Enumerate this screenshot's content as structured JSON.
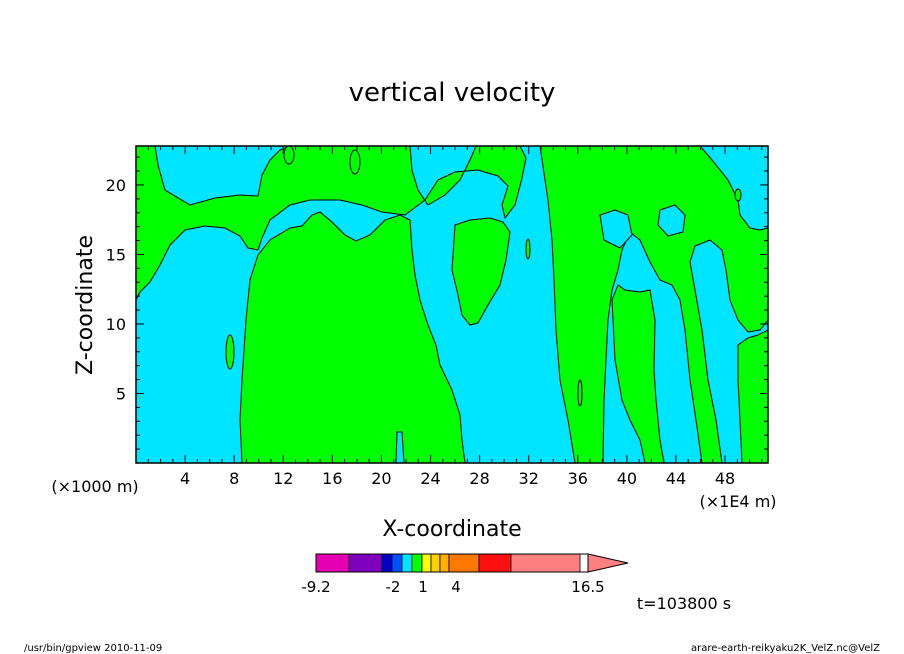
{
  "chart_data": {
    "type": "heatmap",
    "title": "vertical velocity",
    "xlabel": "X-coordinate",
    "ylabel": "Z-coordinate",
    "x_unit_left": "(×1000 m)",
    "x_unit_right": "(×1E4 m)",
    "xlim": [
      0,
      51.5
    ],
    "ylim": [
      0,
      22.8
    ],
    "x_ticks": [
      "4",
      "8",
      "12",
      "16",
      "20",
      "24",
      "28",
      "32",
      "36",
      "40",
      "44",
      "48"
    ],
    "y_ticks": [
      "5",
      "10",
      "15",
      "20"
    ],
    "shaded_levels": {
      "negative_color": "#00e5ff",
      "positive_color": "#00ff00",
      "contour_color": "#000000"
    },
    "colorbar": {
      "labels": [
        "-9.2",
        "-2",
        "1",
        "4",
        "16.5"
      ],
      "colors": [
        "#e600b4",
        "#8000c0",
        "#0000c8",
        "#0050ff",
        "#00e5ff",
        "#00ff00",
        "#ffff00",
        "#ffd000",
        "#ffb000",
        "#ff7800",
        "#ff1010",
        "#ff8080"
      ]
    },
    "time_label": "t=103800 s"
  },
  "footer": {
    "left": "/usr/bin/gpview   2010-11-09",
    "right": "arare-earth-reikyaku2K_VelZ.nc@VelZ"
  }
}
